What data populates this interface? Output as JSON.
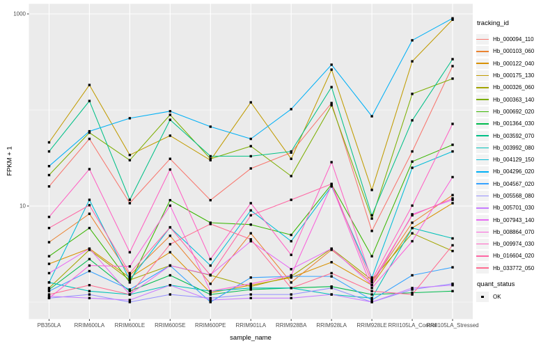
{
  "figure": {
    "y_axis_title": "FPKM + 1",
    "x_axis_title": "sample_name"
  },
  "chart_data": {
    "type": "line",
    "x_type": "categorical",
    "scale_y": "log10",
    "ylim": [
      1,
      1000
    ],
    "grid": true,
    "legend_position": "right",
    "legend_title": "tracking_id",
    "quant_status": {
      "title": "quant_status",
      "label": "OK",
      "marker": "black-square"
    },
    "panel_bg": "#EBEBEB",
    "grid_color": "#FFFFFF",
    "tick_label_color": "#4D4D4D",
    "point_color": "#000000",
    "y_ticks": [
      {
        "value": 10,
        "label": "10"
      },
      {
        "value": 1000,
        "label": "1000"
      }
    ],
    "y_minor_breaks": [
      1,
      100
    ],
    "categories": [
      "PB350LA",
      "RRIM600LA",
      "RRIM600LE",
      "RRIM600SE",
      "RRIM600PE",
      "RRIM901LA",
      "RRIM928BA",
      "RRIM928LA",
      "RRIM928LE",
      "RRII105LA_Control",
      "RRII105LA_Stressed"
    ],
    "series": [
      {
        "name": "Hb_000094_110",
        "color": "#F8766D",
        "values": [
          16,
          50,
          10.7,
          31,
          11.5,
          24.6,
          36,
          118,
          5.5,
          37,
          286
        ]
      },
      {
        "name": "Hb_000103_060",
        "color": "#EA8331",
        "values": [
          4.2,
          8.3,
          1.9,
          4.9,
          1.55,
          5.2,
          1.6,
          3.5,
          1.6,
          6.7,
          13
        ]
      },
      {
        "name": "Hb_000122_040",
        "color": "#D89000",
        "values": [
          2.5,
          3.6,
          1.8,
          3.3,
          1.25,
          1.5,
          1.8,
          2.6,
          1.5,
          5.9,
          10.7
        ]
      },
      {
        "name": "Hb_000175_130",
        "color": "#C09B00",
        "values": [
          46,
          182,
          34,
          54,
          30,
          120,
          31,
          263,
          14.7,
          321,
          870
        ]
      },
      {
        "name": "Hb_000326_060",
        "color": "#A3A500",
        "values": [
          1.4,
          3.5,
          1.7,
          2.4,
          1.9,
          1.45,
          1.85,
          3.6,
          1.7,
          5.2,
          3.4
        ]
      },
      {
        "name": "Hb_000363_140",
        "color": "#7CAE00",
        "values": [
          21,
          58,
          30,
          89,
          31,
          42,
          20.5,
          112,
          7.4,
          147,
          212
        ]
      },
      {
        "name": "Hb_000692_020",
        "color": "#39B600",
        "values": [
          3.0,
          5.9,
          1.6,
          11.5,
          6.7,
          6.4,
          5.0,
          16.8,
          3.0,
          29,
          43.4
        ]
      },
      {
        "name": "Hb_001364_030",
        "color": "#00BB4E",
        "values": [
          1.35,
          2.8,
          1.3,
          1.9,
          1.2,
          1.35,
          1.4,
          1.45,
          1.2,
          1.25,
          1.3
        ]
      },
      {
        "name": "Hb_003592_070",
        "color": "#00C087",
        "values": [
          37,
          124,
          11.6,
          79,
          33,
          33,
          37,
          173,
          8.0,
          78,
          338
        ]
      },
      {
        "name": "Hb_003992_080",
        "color": "#00C0B8",
        "values": [
          1.6,
          1.3,
          1.2,
          1.5,
          1.3,
          1.4,
          1.4,
          1.2,
          1.1,
          5.9,
          4.6
        ]
      },
      {
        "name": "Hb_004129_150",
        "color": "#00BCD8",
        "values": [
          1.6,
          11.6,
          1.7,
          6.0,
          2.4,
          9.0,
          4.3,
          16,
          1.8,
          25,
          37
        ]
      },
      {
        "name": "Hb_004296_020",
        "color": "#00B0F6",
        "values": [
          26,
          60,
          82,
          97,
          67,
          50,
          102,
          296,
          86,
          531,
          900
        ]
      },
      {
        "name": "Hb_004567_020",
        "color": "#35A2FF",
        "values": [
          1.3,
          2.1,
          1.35,
          2.4,
          1.0,
          1.8,
          1.85,
          1.85,
          1.05,
          1.9,
          2.3
        ]
      },
      {
        "name": "Hb_005568_080",
        "color": "#9590FF",
        "values": [
          1.1,
          1.2,
          1.0,
          1.2,
          1.1,
          1.2,
          1.2,
          1.4,
          1.0,
          1.35,
          1.55
        ]
      },
      {
        "name": "Hb_005701_030",
        "color": "#C77CFF",
        "values": [
          1.15,
          1.1,
          1.05,
          1.5,
          1.05,
          1.1,
          1.1,
          1.2,
          1.0,
          1.4,
          1.5
        ]
      },
      {
        "name": "Hb_007943_140",
        "color": "#E76BF3",
        "values": [
          2.0,
          3.6,
          1.2,
          2.4,
          1.92,
          4.3,
          2.2,
          3.6,
          1.5,
          8.2,
          11.6
        ]
      },
      {
        "name": "Hb_008864_070",
        "color": "#FA62DB",
        "values": [
          1.1,
          2.4,
          2.35,
          10.1,
          1.3,
          1.55,
          1.9,
          16.5,
          1.4,
          4.3,
          20
        ]
      },
      {
        "name": "Hb_009974_030",
        "color": "#FF61C3",
        "values": [
          7.7,
          24.2,
          3.3,
          24,
          2.8,
          10.7,
          3.1,
          28.6,
          1.7,
          10.1,
          71.6
        ]
      },
      {
        "name": "Hb_016604_020",
        "color": "#FF67A4",
        "values": [
          5.9,
          10.2,
          2.0,
          6.0,
          1.9,
          8.0,
          11.6,
          17,
          1.6,
          8.0,
          12
        ]
      },
      {
        "name": "Hb_033772_050",
        "color": "#FF6C90",
        "values": [
          1.2,
          1.5,
          1.2,
          4.0,
          6.5,
          4.5,
          1.4,
          2.0,
          1.3,
          1.2,
          3.9
        ]
      }
    ]
  }
}
